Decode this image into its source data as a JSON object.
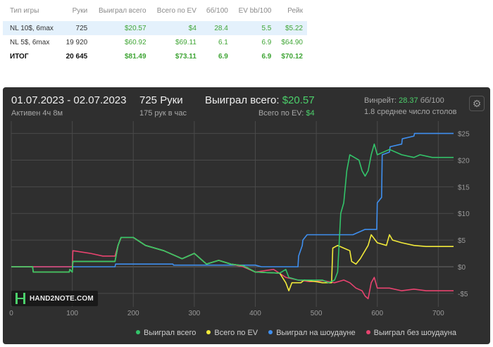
{
  "table": {
    "headers": [
      "Тип игры",
      "Руки",
      "Выиграл всего",
      "Всего по EV",
      "бб/100",
      "EV bb/100",
      "Рейк"
    ],
    "rows": [
      {
        "game": "NL 10$, 6max",
        "hands": "725",
        "won": "$20.57",
        "ev": "$4",
        "bb100": "28.4",
        "evbb100": "5.5",
        "rake": "$5.22"
      },
      {
        "game": "NL 5$, 6max",
        "hands": "19 920",
        "won": "$60.92",
        "ev": "$69.11",
        "bb100": "6.1",
        "evbb100": "6.9",
        "rake": "$64.90"
      }
    ],
    "total": {
      "game": "ИТОГ",
      "hands": "20 645",
      "won": "$81.49",
      "ev": "$73.11",
      "bb100": "6.9",
      "evbb100": "6.9",
      "rake": "$70.12"
    }
  },
  "summary": {
    "date_range": "01.07.2023 - 02.07.2023",
    "active": "Активен 4ч 8м",
    "hands": "725 Руки",
    "hands_per_hour": "175 рук в час",
    "won_label": "Выиграл всего:",
    "won_value": "$20.57",
    "ev_label": "Всего по EV:",
    "ev_value": "$4",
    "winrate_label": "Винрейт:",
    "winrate_value": "28.37",
    "winrate_unit": "бб/100",
    "avg_tables": "1.8 среднее число столов"
  },
  "logo_text": "HAND2NOTE.COM",
  "colors": {
    "won": "#33c46a",
    "ev": "#f2ea3a",
    "showdown": "#3f8fef",
    "non_showdown": "#e8436f",
    "grid": "#4a4a4a"
  },
  "chart_data": {
    "type": "line",
    "xlim": [
      0,
      725
    ],
    "ylim": [
      -7,
      26
    ],
    "x_ticks": [
      0,
      100,
      200,
      300,
      400,
      500,
      600,
      700
    ],
    "y_ticks": [
      25,
      20,
      15,
      10,
      5,
      0,
      -5
    ],
    "y_tick_labels": [
      "$25",
      "$20",
      "$15",
      "$10",
      "$5",
      "$0",
      "-$5"
    ],
    "legend_position": "bottom-right",
    "series": [
      {
        "name": "Выиграл всего",
        "color": "#33c46a",
        "points": [
          [
            0,
            0
          ],
          [
            35,
            0
          ],
          [
            36,
            -1
          ],
          [
            95,
            -1
          ],
          [
            96,
            -0.5
          ],
          [
            100,
            -1
          ],
          [
            101,
            1
          ],
          [
            170,
            1
          ],
          [
            175,
            4
          ],
          [
            180,
            5.5
          ],
          [
            200,
            5.5
          ],
          [
            220,
            4
          ],
          [
            250,
            3
          ],
          [
            280,
            1.5
          ],
          [
            300,
            2.5
          ],
          [
            320,
            0.5
          ],
          [
            340,
            1.2
          ],
          [
            360,
            0.5
          ],
          [
            380,
            0.2
          ],
          [
            400,
            -1
          ],
          [
            440,
            -1.2
          ],
          [
            450,
            -0.5
          ],
          [
            455,
            -2
          ],
          [
            470,
            -2.5
          ],
          [
            490,
            -2.5
          ],
          [
            510,
            -2.5
          ],
          [
            520,
            -3
          ],
          [
            530,
            -2.5
          ],
          [
            535,
            -1
          ],
          [
            540,
            10
          ],
          [
            545,
            12
          ],
          [
            550,
            18
          ],
          [
            555,
            21
          ],
          [
            570,
            20
          ],
          [
            575,
            18
          ],
          [
            580,
            17
          ],
          [
            585,
            18
          ],
          [
            590,
            21
          ],
          [
            595,
            23
          ],
          [
            600,
            21
          ],
          [
            620,
            22
          ],
          [
            640,
            21
          ],
          [
            660,
            20.5
          ],
          [
            670,
            21
          ],
          [
            690,
            20.5
          ],
          [
            725,
            20.5
          ]
        ]
      },
      {
        "name": "Всего по EV",
        "color": "#f2ea3a",
        "points": [
          [
            0,
            0
          ],
          [
            35,
            0
          ],
          [
            36,
            -1
          ],
          [
            95,
            -1
          ],
          [
            96,
            -0.5
          ],
          [
            100,
            -1
          ],
          [
            101,
            1
          ],
          [
            170,
            1
          ],
          [
            175,
            4
          ],
          [
            180,
            5.5
          ],
          [
            200,
            5.5
          ],
          [
            220,
            4
          ],
          [
            250,
            3
          ],
          [
            280,
            1.5
          ],
          [
            300,
            2.5
          ],
          [
            320,
            0.5
          ],
          [
            340,
            1.2
          ],
          [
            360,
            0.5
          ],
          [
            380,
            0.2
          ],
          [
            400,
            -1
          ],
          [
            440,
            -1.2
          ],
          [
            450,
            -3
          ],
          [
            455,
            -4.5
          ],
          [
            460,
            -3
          ],
          [
            475,
            -3
          ],
          [
            480,
            -2.5
          ],
          [
            500,
            -2.8
          ],
          [
            510,
            -3
          ],
          [
            525,
            -3
          ],
          [
            527,
            3.5
          ],
          [
            535,
            4
          ],
          [
            545,
            3.5
          ],
          [
            555,
            3
          ],
          [
            558,
            1
          ],
          [
            565,
            0.5
          ],
          [
            572,
            1.5
          ],
          [
            585,
            4
          ],
          [
            590,
            6
          ],
          [
            600,
            4.5
          ],
          [
            615,
            4
          ],
          [
            620,
            6
          ],
          [
            625,
            5
          ],
          [
            640,
            4.5
          ],
          [
            660,
            4
          ],
          [
            680,
            3.8
          ],
          [
            725,
            3.8
          ]
        ]
      },
      {
        "name": "Выиграл на шоудауне",
        "color": "#3f8fef",
        "points": [
          [
            0,
            0
          ],
          [
            170,
            0
          ],
          [
            171,
            0.5
          ],
          [
            265,
            0.5
          ],
          [
            266,
            0.3
          ],
          [
            400,
            0.3
          ],
          [
            410,
            0
          ],
          [
            470,
            0
          ],
          [
            471,
            2
          ],
          [
            477,
            4
          ],
          [
            478,
            5
          ],
          [
            485,
            6
          ],
          [
            560,
            6
          ],
          [
            580,
            7
          ],
          [
            599,
            7
          ],
          [
            600,
            12
          ],
          [
            607,
            13
          ],
          [
            608,
            21
          ],
          [
            620,
            21.5
          ],
          [
            621,
            22.5
          ],
          [
            640,
            23
          ],
          [
            641,
            24
          ],
          [
            660,
            24.5
          ],
          [
            661,
            25
          ],
          [
            725,
            25
          ]
        ]
      },
      {
        "name": "Выиграл без шоудауна",
        "color": "#e8436f",
        "points": [
          [
            0,
            0
          ],
          [
            100,
            0
          ],
          [
            101,
            3
          ],
          [
            130,
            2.5
          ],
          [
            150,
            2
          ],
          [
            170,
            2
          ],
          [
            175,
            4
          ],
          [
            180,
            5.5
          ],
          [
            200,
            5.5
          ],
          [
            220,
            4
          ],
          [
            250,
            3
          ],
          [
            280,
            1.5
          ],
          [
            300,
            2.5
          ],
          [
            320,
            0.5
          ],
          [
            340,
            1.2
          ],
          [
            360,
            0.5
          ],
          [
            380,
            0
          ],
          [
            400,
            -1
          ],
          [
            430,
            -0.5
          ],
          [
            450,
            -2
          ],
          [
            470,
            -2.5
          ],
          [
            490,
            -2.8
          ],
          [
            510,
            -2.6
          ],
          [
            530,
            -3
          ],
          [
            545,
            -2.5
          ],
          [
            555,
            -3
          ],
          [
            565,
            -4
          ],
          [
            575,
            -4.5
          ],
          [
            580,
            -5.5
          ],
          [
            585,
            -6
          ],
          [
            590,
            -3
          ],
          [
            595,
            -2
          ],
          [
            600,
            -4
          ],
          [
            620,
            -4
          ],
          [
            640,
            -4.5
          ],
          [
            660,
            -4.2
          ],
          [
            680,
            -4.5
          ],
          [
            725,
            -4.5
          ]
        ]
      }
    ]
  }
}
